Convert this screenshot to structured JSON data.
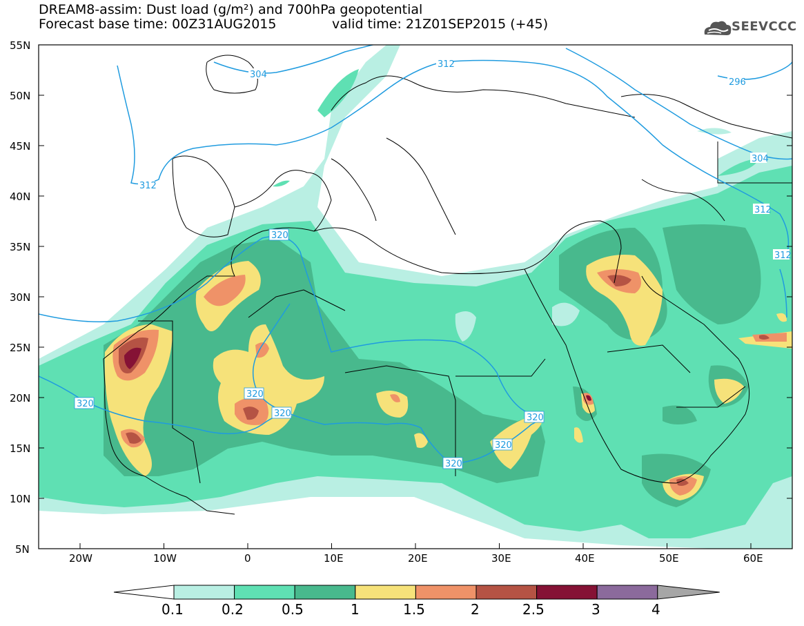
{
  "title_line1": "DREAM8-assim: Dust load (g/m²) and 700hPa geopotential",
  "title_line2_left": "Forecast base time: 00Z31AUG2015",
  "title_line2_right": "valid time: 21Z01SEP2015 (+45)",
  "logo": {
    "icon": "cloud-logo-icon",
    "text": "SEEVCCC"
  },
  "lat_labels": [
    "55N",
    "50N",
    "45N",
    "40N",
    "35N",
    "30N",
    "25N",
    "20N",
    "15N",
    "10N",
    "5N"
  ],
  "lon_labels": [
    "20W",
    "10W",
    "0",
    "10E",
    "20E",
    "30E",
    "40E",
    "50E",
    "60E"
  ],
  "contour_labels": [
    "304",
    "312",
    "296",
    "304",
    "312",
    "312",
    "312",
    "320",
    "320",
    "320",
    "320",
    "320",
    "320",
    "320"
  ],
  "colorbar": {
    "ticks": [
      "0.1",
      "0.2",
      "0.5",
      "1",
      "1.5",
      "2",
      "2.5",
      "3",
      "4"
    ],
    "colors": [
      "#ffffff",
      "#b9efe3",
      "#5fe0b3",
      "#48b98d",
      "#f6e27a",
      "#ef9268",
      "#b55344",
      "#851235",
      "#8b6a9c",
      "#a6a6a6"
    ]
  },
  "colors": {
    "level_01": "#b9efe3",
    "level_02": "#5fe0b3",
    "level_05": "#48b98d",
    "level_1": "#f6e27a",
    "level_15": "#ef9268",
    "level_2": "#b55344",
    "level_25": "#851235",
    "contour": "#1f9bdf",
    "coast": "#000000"
  }
}
